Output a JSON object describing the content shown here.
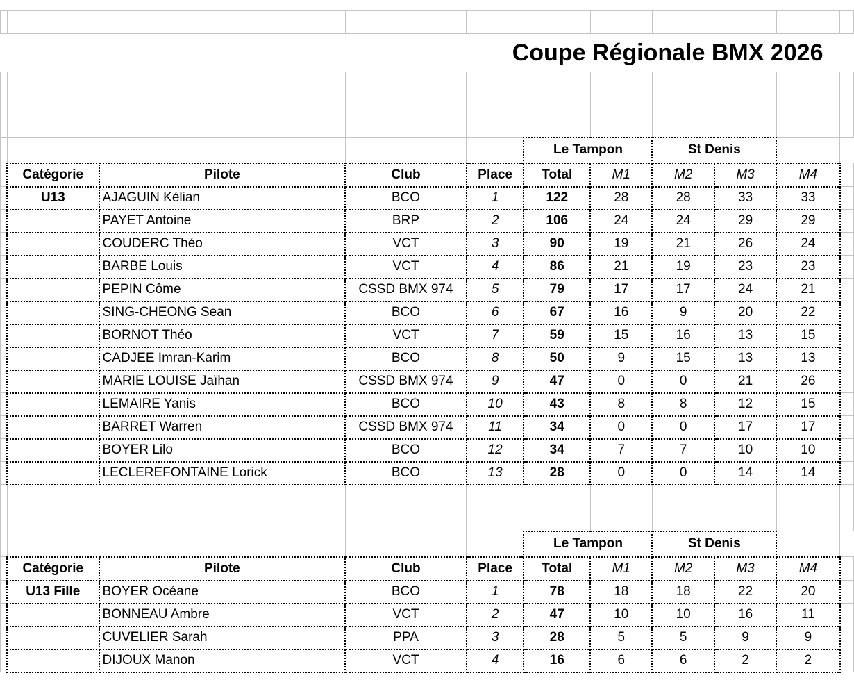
{
  "title": "Coupe Régionale BMX 2026",
  "sections": [
    {
      "groups": [
        "Le Tampon",
        "St Denis"
      ],
      "headers": {
        "category": "Catégorie",
        "pilot": "Pilote",
        "club": "Club",
        "place": "Place",
        "total": "Total",
        "m1": "M1",
        "m2": "M2",
        "m3": "M3",
        "m4": "M4"
      },
      "category": "U13",
      "rows": [
        {
          "pilot": "AJAGUIN Kélian",
          "club": "BCO",
          "place": "1",
          "total": "122",
          "m1": "28",
          "m2": "28",
          "m3": "33",
          "m4": "33"
        },
        {
          "pilot": "PAYET Antoine",
          "club": "BRP",
          "place": "2",
          "total": "106",
          "m1": "24",
          "m2": "24",
          "m3": "29",
          "m4": "29"
        },
        {
          "pilot": "COUDERC Théo",
          "club": "VCT",
          "place": "3",
          "total": "90",
          "m1": "19",
          "m2": "21",
          "m3": "26",
          "m4": "24"
        },
        {
          "pilot": "BARBE Louis",
          "club": "VCT",
          "place": "4",
          "total": "86",
          "m1": "21",
          "m2": "19",
          "m3": "23",
          "m4": "23"
        },
        {
          "pilot": "PEPIN Côme",
          "club": "CSSD BMX 974",
          "place": "5",
          "total": "79",
          "m1": "17",
          "m2": "17",
          "m3": "24",
          "m4": "21"
        },
        {
          "pilot": "SING-CHEONG Sean",
          "club": "BCO",
          "place": "6",
          "total": "67",
          "m1": "16",
          "m2": "9",
          "m3": "20",
          "m4": "22"
        },
        {
          "pilot": "BORNOT Théo",
          "club": "VCT",
          "place": "7",
          "total": "59",
          "m1": "15",
          "m2": "16",
          "m3": "13",
          "m4": "15"
        },
        {
          "pilot": "CADJEE Imran-Karim",
          "club": "BCO",
          "place": "8",
          "total": "50",
          "m1": "9",
          "m2": "15",
          "m3": "13",
          "m4": "13"
        },
        {
          "pilot": "MARIE LOUISE Jaïhan",
          "club": "CSSD BMX 974",
          "place": "9",
          "total": "47",
          "m1": "0",
          "m2": "0",
          "m3": "21",
          "m4": "26"
        },
        {
          "pilot": "LEMAIRE Yanis",
          "club": "BCO",
          "place": "10",
          "total": "43",
          "m1": "8",
          "m2": "8",
          "m3": "12",
          "m4": "15"
        },
        {
          "pilot": "BARRET Warren",
          "club": "CSSD BMX 974",
          "place": "11",
          "total": "34",
          "m1": "0",
          "m2": "0",
          "m3": "17",
          "m4": "17"
        },
        {
          "pilot": "BOYER Lilo",
          "club": "BCO",
          "place": "12",
          "total": "34",
          "m1": "7",
          "m2": "7",
          "m3": "10",
          "m4": "10"
        },
        {
          "pilot": "LECLEREFONTAINE Lorick",
          "club": "BCO",
          "place": "13",
          "total": "28",
          "m1": "0",
          "m2": "0",
          "m3": "14",
          "m4": "14"
        }
      ]
    },
    {
      "groups": [
        "Le Tampon",
        "St Denis"
      ],
      "headers": {
        "category": "Catégorie",
        "pilot": "Pilote",
        "club": "Club",
        "place": "Place",
        "total": "Total",
        "m1": "M1",
        "m2": "M2",
        "m3": "M3",
        "m4": "M4"
      },
      "category": "U13 Fille",
      "rows": [
        {
          "pilot": "BOYER Océane",
          "club": "BCO",
          "place": "1",
          "total": "78",
          "m1": "18",
          "m2": "18",
          "m3": "22",
          "m4": "20"
        },
        {
          "pilot": "BONNEAU Ambre",
          "club": "VCT",
          "place": "2",
          "total": "47",
          "m1": "10",
          "m2": "10",
          "m3": "16",
          "m4": "11"
        },
        {
          "pilot": "CUVELIER Sarah",
          "club": "PPA",
          "place": "3",
          "total": "28",
          "m1": "5",
          "m2": "5",
          "m3": "9",
          "m4": "9"
        },
        {
          "pilot": "DIJOUX Manon",
          "club": "VCT",
          "place": "4",
          "total": "16",
          "m1": "6",
          "m2": "6",
          "m3": "2",
          "m4": "2"
        }
      ]
    }
  ]
}
